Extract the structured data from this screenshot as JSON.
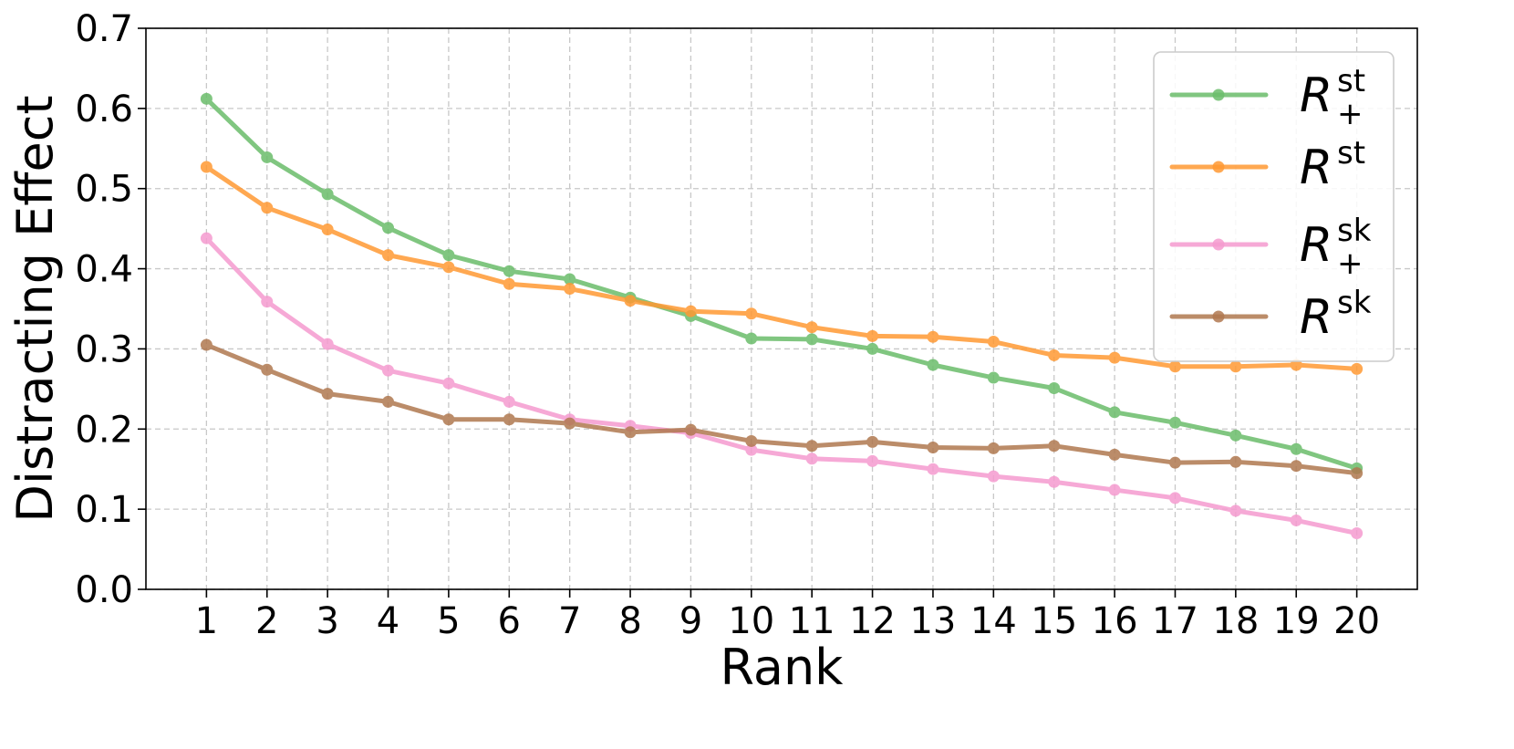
{
  "chart_data": {
    "type": "line",
    "title": "",
    "xlabel": "Rank",
    "ylabel": "Distracting Effect",
    "x": [
      1,
      2,
      3,
      4,
      5,
      6,
      7,
      8,
      9,
      10,
      11,
      12,
      13,
      14,
      15,
      16,
      17,
      18,
      19,
      20
    ],
    "x_tick_labels": [
      "1",
      "2",
      "3",
      "4",
      "5",
      "6",
      "7",
      "8",
      "9",
      "10",
      "11",
      "12",
      "13",
      "14",
      "15",
      "16",
      "17",
      "18",
      "19",
      "20"
    ],
    "xlim": [
      0.0,
      21.0
    ],
    "ylim": [
      0.0,
      0.7
    ],
    "y_ticks": [
      0.0,
      0.1,
      0.2,
      0.3,
      0.4,
      0.5,
      0.6,
      0.7
    ],
    "y_tick_labels": [
      "0.0",
      "0.1",
      "0.2",
      "0.3",
      "0.4",
      "0.5",
      "0.6",
      "0.7"
    ],
    "grid": true,
    "legend_position": "top-right",
    "series": [
      {
        "name": "R_+^st",
        "legend_base": "R",
        "legend_sup": "st",
        "legend_sub": "+",
        "color": "#6bbd6b",
        "values": [
          0.612,
          0.539,
          0.493,
          0.451,
          0.417,
          0.397,
          0.387,
          0.364,
          0.341,
          0.313,
          0.312,
          0.3,
          0.28,
          0.264,
          0.251,
          0.221,
          0.208,
          0.192,
          0.175,
          0.151
        ]
      },
      {
        "name": "R^st",
        "legend_base": "R",
        "legend_sup": "st",
        "legend_sub": "",
        "color": "#ff9933",
        "values": [
          0.527,
          0.476,
          0.449,
          0.417,
          0.402,
          0.381,
          0.375,
          0.36,
          0.347,
          0.344,
          0.327,
          0.316,
          0.315,
          0.309,
          0.292,
          0.289,
          0.278,
          0.278,
          0.28,
          0.275
        ]
      },
      {
        "name": "R_+^sk",
        "legend_base": "R",
        "legend_sup": "sk",
        "legend_sub": "+",
        "color": "#f59bcf",
        "values": [
          0.438,
          0.359,
          0.306,
          0.273,
          0.257,
          0.234,
          0.212,
          0.204,
          0.195,
          0.174,
          0.163,
          0.16,
          0.15,
          0.141,
          0.134,
          0.124,
          0.114,
          0.098,
          0.086,
          0.07
        ]
      },
      {
        "name": "R^sk",
        "legend_base": "R",
        "legend_sup": "sk",
        "legend_sub": "",
        "color": "#b07850",
        "values": [
          0.305,
          0.274,
          0.244,
          0.234,
          0.212,
          0.212,
          0.207,
          0.196,
          0.199,
          0.185,
          0.179,
          0.184,
          0.177,
          0.176,
          0.179,
          0.168,
          0.158,
          0.159,
          0.154,
          0.145
        ]
      }
    ]
  }
}
